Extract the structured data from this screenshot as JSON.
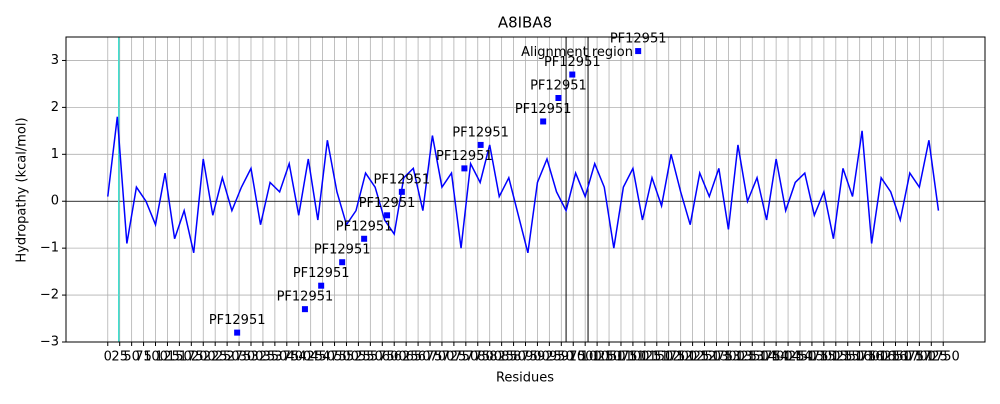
{
  "chart_data": {
    "type": "line",
    "title": "A8IBA8",
    "x_label": "Residues",
    "y_label": "Hydropathy (kcal/mol)",
    "xlim": [
      -87.5,
      1837.5
    ],
    "ylim": [
      -3,
      3.5
    ],
    "xticks": [
      0,
      25,
      50,
      75,
      100,
      125,
      150,
      175,
      200,
      225,
      250,
      275,
      300,
      325,
      350,
      375,
      400,
      425,
      450,
      475,
      500,
      525,
      550,
      575,
      600,
      625,
      650,
      675,
      700,
      725,
      750,
      775,
      800,
      825,
      850,
      875,
      900,
      925,
      950,
      975,
      1000,
      1025,
      1050,
      1075,
      1100,
      1125,
      1150,
      1175,
      1200,
      1225,
      1250,
      1275,
      1300,
      1325,
      1350,
      1375,
      1400,
      1425,
      1450,
      1475,
      1500,
      1525,
      1550,
      1575,
      1600,
      1625,
      1650,
      1675,
      1700,
      1725,
      1750
    ],
    "yticks": [
      {
        "value": -3,
        "label": "−3"
      },
      {
        "value": -2,
        "label": "−2"
      },
      {
        "value": -1,
        "label": "−1"
      },
      0,
      1,
      2,
      3
    ],
    "grid": true,
    "series": [
      {
        "color": "#0000ff",
        "x": [
          0,
          20,
          40,
          60,
          80,
          100,
          120,
          140,
          160,
          180,
          200,
          220,
          240,
          260,
          280,
          300,
          320,
          340,
          360,
          380,
          400,
          420,
          440,
          460,
          480,
          500,
          520,
          540,
          560,
          580,
          600,
          620,
          640,
          660,
          680,
          700,
          720,
          740,
          760,
          780,
          800,
          820,
          840,
          860,
          880,
          900,
          920,
          940,
          960,
          980,
          1000,
          1020,
          1040,
          1060,
          1080,
          1100,
          1120,
          1140,
          1160,
          1180,
          1200,
          1220,
          1240,
          1260,
          1280,
          1300,
          1320,
          1340,
          1360,
          1380,
          1400,
          1420,
          1440,
          1460,
          1480,
          1500,
          1520,
          1540,
          1560,
          1580,
          1600,
          1620,
          1640,
          1660,
          1680,
          1700,
          1720,
          1740
        ],
        "values": [
          0.1,
          1.8,
          -0.9,
          0.3,
          0.0,
          -0.5,
          0.6,
          -0.8,
          -0.2,
          -1.1,
          0.9,
          -0.3,
          0.5,
          -0.2,
          0.3,
          0.7,
          -0.5,
          0.4,
          0.2,
          0.8,
          -0.3,
          0.9,
          -0.4,
          1.3,
          0.2,
          -0.5,
          -0.2,
          0.6,
          0.3,
          -0.4,
          -0.7,
          0.5,
          0.7,
          -0.2,
          1.4,
          0.3,
          0.6,
          -1.0,
          0.8,
          0.4,
          1.2,
          0.1,
          0.5,
          -0.3,
          -1.1,
          0.4,
          0.9,
          0.2,
          -0.2,
          0.6,
          0.1,
          0.8,
          0.3,
          -1.0,
          0.3,
          0.7,
          -0.4,
          0.5,
          -0.1,
          1.0,
          0.2,
          -0.5,
          0.6,
          0.1,
          0.7,
          -0.6,
          1.2,
          0.0,
          0.5,
          -0.4,
          0.9,
          -0.2,
          0.4,
          0.6,
          -0.3,
          0.2,
          -0.8,
          0.7,
          0.1,
          1.5,
          -0.9,
          0.5,
          0.2,
          -0.4,
          0.6,
          0.3,
          1.3,
          -0.2
        ]
      }
    ],
    "domains": {
      "color": "#0000ff",
      "items": [
        {
          "label": "PF12951",
          "x": 271,
          "y": -2.8
        },
        {
          "label": "PF12951",
          "x": 413,
          "y": -2.3
        },
        {
          "label": "PF12951",
          "x": 447,
          "y": -1.8
        },
        {
          "label": "PF12951",
          "x": 491,
          "y": -1.3
        },
        {
          "label": "PF12951",
          "x": 537,
          "y": -0.8
        },
        {
          "label": "PF12951",
          "x": 585,
          "y": -0.3
        },
        {
          "label": "PF12951",
          "x": 616,
          "y": 0.2
        },
        {
          "label": "PF12951",
          "x": 747,
          "y": 0.7
        },
        {
          "label": "PF12951",
          "x": 781,
          "y": 1.2
        },
        {
          "label": "PF12951",
          "x": 912,
          "y": 1.7
        },
        {
          "label": "PF12951",
          "x": 944,
          "y": 2.2
        },
        {
          "label": "PF12951",
          "x": 973,
          "y": 2.7
        },
        {
          "label": "PF12951",
          "x": 1111,
          "y": 3.2
        }
      ]
    },
    "alignment_region": {
      "label": "Alignment region",
      "start": 960,
      "end": 1006,
      "label_y": 3
    },
    "highlight": {
      "x": 23,
      "color": "#40e0d0"
    }
  }
}
